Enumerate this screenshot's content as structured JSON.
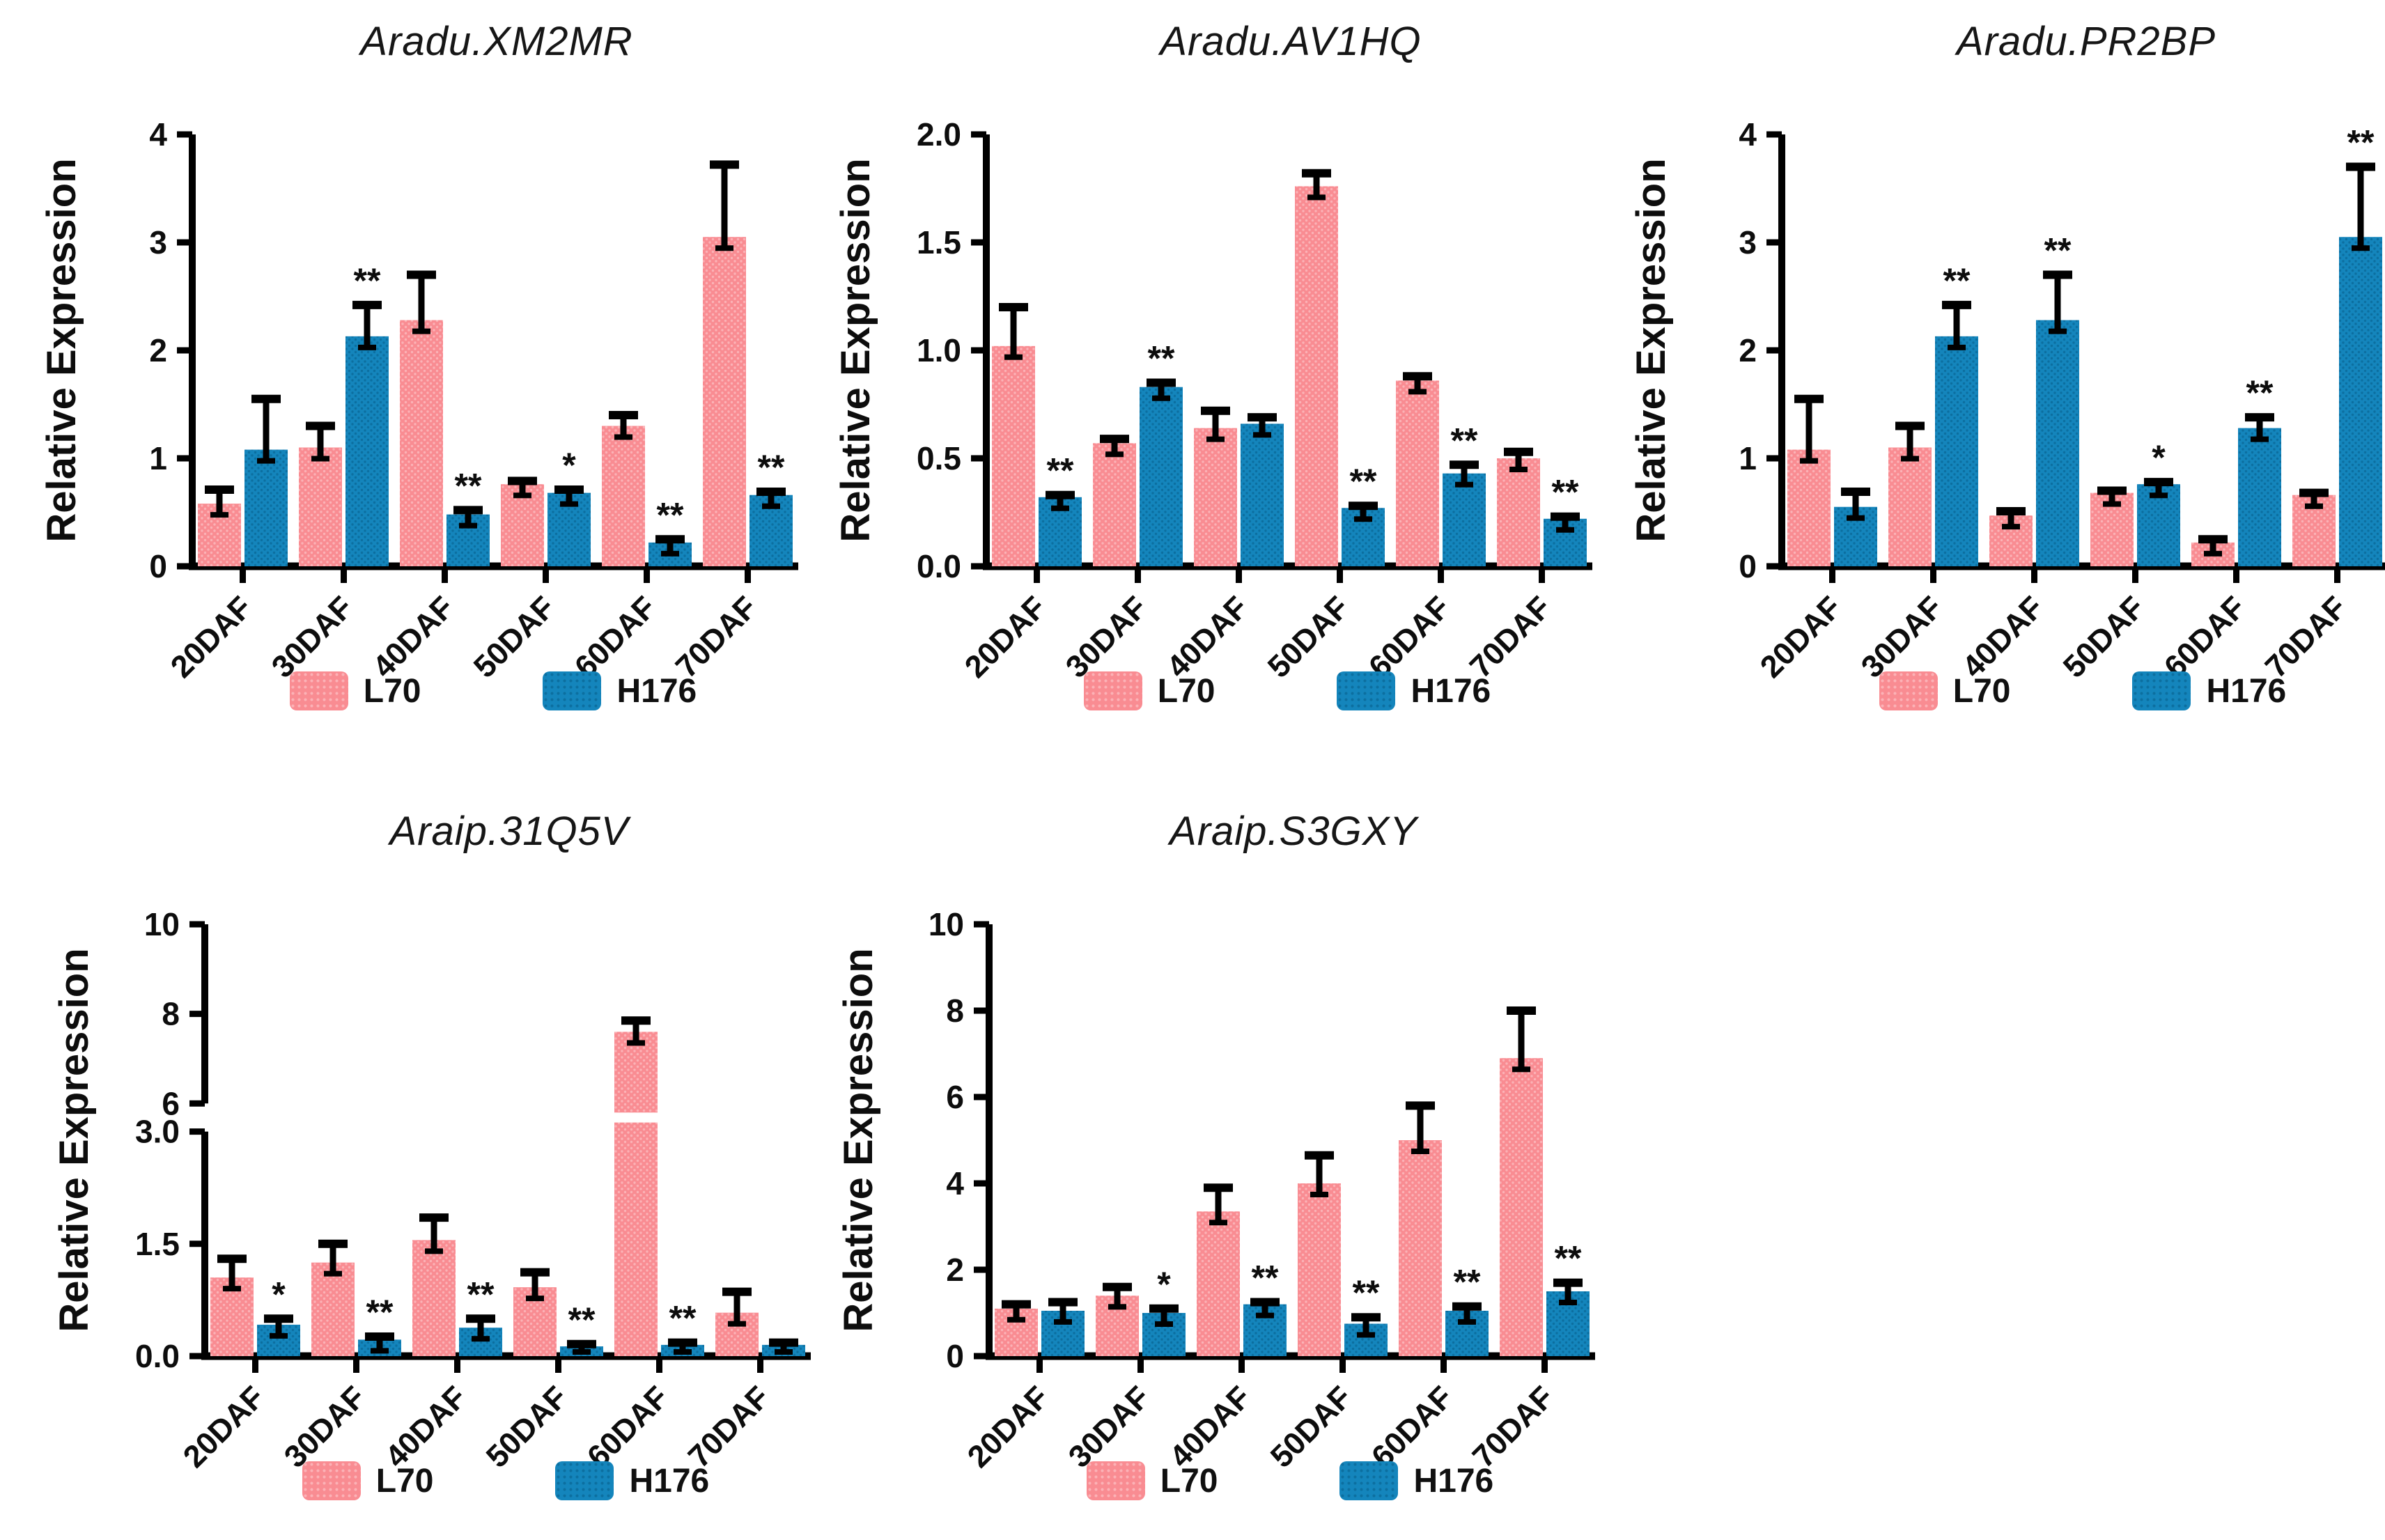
{
  "figure": {
    "background": "#ffffff",
    "axis_color": "#000000",
    "legend": [
      {
        "label": "L70",
        "color": "#F98C92",
        "dot_color": "#FBB2B6"
      },
      {
        "label": "H176",
        "color": "#1485BC",
        "dot_color": "#0C6FA0"
      }
    ]
  },
  "chart_data": [
    {
      "type": "bar",
      "title": "Aradu.XM2MR",
      "ylabel": "Relative Expression",
      "categories": [
        "20DAF",
        "30DAF",
        "40DAF",
        "50DAF",
        "60DAF",
        "70DAF"
      ],
      "ymax": 4,
      "ytick_values": [
        0,
        1,
        2,
        3,
        4
      ],
      "ytick_labels": [
        "0",
        "1",
        "2",
        "3",
        "4"
      ],
      "grid": false,
      "legend_position": "bottom",
      "series": [
        {
          "name": "L70",
          "values": [
            0.58,
            1.1,
            2.28,
            0.76,
            1.3,
            3.05
          ],
          "errors": [
            0.13,
            0.2,
            0.42,
            0.03,
            0.1,
            0.67
          ]
        },
        {
          "name": "H176",
          "values": [
            1.08,
            2.13,
            0.48,
            0.68,
            0.22,
            0.66
          ],
          "errors": [
            0.47,
            0.29,
            0.04,
            0.03,
            0.03,
            0.03
          ]
        }
      ],
      "significance": [
        "",
        "**",
        "**",
        "*",
        "**",
        "**"
      ]
    },
    {
      "type": "bar",
      "title": "Aradu.AV1HQ",
      "ylabel": "Relative Expression",
      "categories": [
        "20DAF",
        "30DAF",
        "40DAF",
        "50DAF",
        "60DAF",
        "70DAF"
      ],
      "ymax": 2,
      "ytick_values": [
        0,
        0.5,
        1,
        1.5,
        2
      ],
      "ytick_labels": [
        "0.0",
        "0.5",
        "1.0",
        "1.5",
        "2.0"
      ],
      "grid": false,
      "legend_position": "bottom",
      "series": [
        {
          "name": "L70",
          "values": [
            1.02,
            0.57,
            0.64,
            1.76,
            0.86,
            0.5
          ],
          "errors": [
            0.18,
            0.02,
            0.08,
            0.06,
            0.02,
            0.03
          ]
        },
        {
          "name": "H176",
          "values": [
            0.32,
            0.83,
            0.66,
            0.27,
            0.43,
            0.22
          ],
          "errors": [
            0.01,
            0.02,
            0.03,
            0.01,
            0.04,
            0.01
          ]
        }
      ],
      "significance": [
        "**",
        "**",
        "",
        "**",
        "**",
        "**"
      ]
    },
    {
      "type": "bar",
      "title": "Aradu.PR2BP",
      "ylabel": "Relative Expression",
      "categories": [
        "20DAF",
        "30DAF",
        "40DAF",
        "50DAF",
        "60DAF",
        "70DAF"
      ],
      "ymax": 4,
      "ytick_values": [
        0,
        1,
        2,
        3,
        4
      ],
      "ytick_labels": [
        "0",
        "1",
        "2",
        "3",
        "4"
      ],
      "grid": false,
      "legend_position": "bottom",
      "series": [
        {
          "name": "L70",
          "values": [
            1.08,
            1.1,
            0.47,
            0.68,
            0.22,
            0.66
          ],
          "errors": [
            0.47,
            0.2,
            0.04,
            0.02,
            0.03,
            0.02
          ]
        },
        {
          "name": "H176",
          "values": [
            0.55,
            2.13,
            2.28,
            0.76,
            1.28,
            3.05
          ],
          "errors": [
            0.14,
            0.29,
            0.42,
            0.02,
            0.1,
            0.65
          ]
        }
      ],
      "significance": [
        "",
        "**",
        "**",
        "*",
        "**",
        "**"
      ]
    },
    {
      "type": "bar",
      "title": "Araip.31Q5V",
      "ylabel": "Relative Expression",
      "categories": [
        "20DAF",
        "30DAF",
        "40DAF",
        "50DAF",
        "60DAF",
        "70DAF"
      ],
      "axis_break": {
        "lower_max": 3,
        "upper_min": 6,
        "upper_max": 10,
        "lower_tick_values": [
          0,
          1.5,
          3
        ],
        "lower_tick_labels": [
          "0.0",
          "1.5",
          "3.0"
        ],
        "upper_tick_values": [
          6,
          8,
          10
        ],
        "upper_tick_labels": [
          "6",
          "8",
          "10"
        ]
      },
      "grid": false,
      "legend_position": "bottom",
      "series": [
        {
          "name": "L70",
          "values": [
            1.05,
            1.25,
            1.55,
            0.92,
            7.6,
            0.58
          ],
          "errors": [
            0.25,
            0.25,
            0.3,
            0.2,
            0.25,
            0.28
          ]
        },
        {
          "name": "H176",
          "values": [
            0.42,
            0.22,
            0.38,
            0.13,
            0.15,
            0.15
          ],
          "errors": [
            0.08,
            0.04,
            0.12,
            0.03,
            0.03,
            0.03
          ]
        }
      ],
      "significance": [
        "*",
        "**",
        "**",
        "**",
        "**",
        ""
      ]
    },
    {
      "type": "bar",
      "title": "Araip.S3GXY",
      "ylabel": "Relative Expression",
      "categories": [
        "20DAF",
        "30DAF",
        "40DAF",
        "50DAF",
        "60DAF",
        "70DAF"
      ],
      "ymax": 10,
      "ytick_values": [
        0,
        2,
        4,
        6,
        8,
        10
      ],
      "ytick_labels": [
        "0",
        "2",
        "4",
        "6",
        "8",
        "10"
      ],
      "grid": false,
      "legend_position": "bottom",
      "series": [
        {
          "name": "L70",
          "values": [
            1.1,
            1.4,
            3.35,
            4.0,
            5.0,
            6.9
          ],
          "errors": [
            0.1,
            0.2,
            0.55,
            0.65,
            0.8,
            1.1
          ]
        },
        {
          "name": "H176",
          "values": [
            1.05,
            1.0,
            1.2,
            0.75,
            1.05,
            1.5
          ],
          "errors": [
            0.2,
            0.1,
            0.05,
            0.15,
            0.1,
            0.2
          ]
        }
      ],
      "significance": [
        "",
        "*",
        "**",
        "**",
        "**",
        "**"
      ]
    }
  ]
}
